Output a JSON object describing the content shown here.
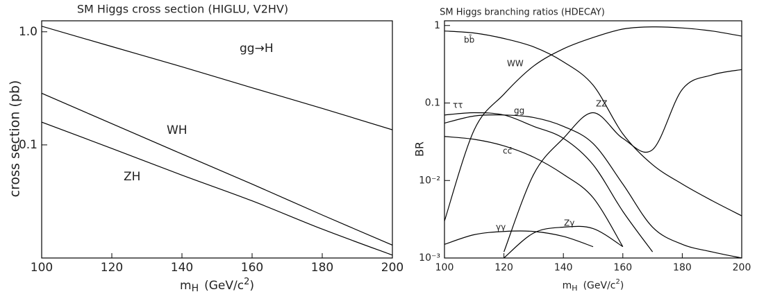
{
  "chart_data": [
    {
      "type": "line",
      "title": "SM Higgs cross section (HIGLU, V2HV)",
      "ylabel": "cross section  (pb)",
      "xlabel": [
        "m",
        "H",
        "(GeV/c",
        "2",
        ")"
      ],
      "x": [
        100,
        120,
        140,
        160,
        180,
        200
      ],
      "series": [
        {
          "name": "gg→H",
          "color": "#000000",
          "values": [
            1.12,
            0.74,
            0.49,
            0.32,
            0.21,
            0.136
          ]
        },
        {
          "name": "WH",
          "color": "#000000",
          "values": [
            0.286,
            0.154,
            0.083,
            0.045,
            0.024,
            0.013
          ]
        },
        {
          "name": "ZH",
          "color": "#000000",
          "values": [
            0.159,
            0.093,
            0.054,
            0.032,
            0.018,
            0.0106
          ]
        }
      ],
      "xlim": [
        100,
        200
      ],
      "xticks": [
        100,
        120,
        140,
        160,
        180,
        200
      ],
      "ylim": [
        0.01,
        1.25
      ],
      "yticks": [
        {
          "value": 1,
          "label": "1.0"
        },
        0.1
      ],
      "log_y": true
    },
    {
      "type": "line",
      "title": "SM Higgs branching ratios (HDECAY)",
      "ylabel": "BR",
      "xlabel": [
        "m",
        "H",
        "(GeV/c",
        "2",
        ")"
      ],
      "x": [
        100,
        110,
        120,
        130,
        140,
        150,
        160,
        170,
        180,
        190,
        200
      ],
      "series": [
        {
          "name": "bb̄",
          "color": "#000000",
          "values": [
            0.85,
            0.8,
            0.68,
            0.53,
            0.34,
            0.17,
            0.04,
            0.016,
            0.009,
            0.0055,
            0.0035
          ]
        },
        {
          "name": "WW",
          "color": "#000000",
          "values": [
            0.003,
            0.045,
            0.13,
            0.3,
            0.5,
            0.7,
            0.9,
            0.96,
            0.93,
            0.85,
            0.73
          ]
        },
        {
          "name": "ττ",
          "color": "#000000",
          "values": [
            0.07,
            0.075,
            0.07,
            0.05,
            0.035,
            0.016,
            0.004,
            0.0012,
            null,
            null,
            null
          ]
        },
        {
          "name": "gg",
          "color": "#000000",
          "values": [
            0.055,
            0.068,
            0.07,
            0.065,
            0.05,
            0.03,
            0.009,
            0.0025,
            0.0015,
            0.0012,
            0.001
          ]
        },
        {
          "name": "ZZ",
          "color": "#000000",
          "values": [
            null,
            null,
            0.0012,
            0.012,
            0.035,
            0.075,
            0.035,
            0.025,
            0.15,
            0.23,
            0.27
          ]
        },
        {
          "name": "cc̄",
          "color": "#000000",
          "values": [
            0.037,
            0.034,
            0.028,
            0.02,
            0.012,
            0.006,
            0.0014,
            null,
            null,
            null,
            null
          ]
        },
        {
          "name": "γγ",
          "color": "#000000",
          "values": [
            0.0015,
            0.002,
            0.0022,
            0.0022,
            0.0019,
            0.0014,
            null,
            null,
            null,
            null,
            null
          ]
        },
        {
          "name": "Zγ",
          "color": "#000000",
          "values": [
            null,
            null,
            0.001,
            0.0021,
            0.0025,
            0.0024,
            0.0014,
            null,
            null,
            null,
            null
          ]
        }
      ],
      "xlim": [
        100,
        200
      ],
      "xticks": [
        100,
        120,
        140,
        160,
        180,
        200
      ],
      "ylim": [
        0.001,
        1.15
      ],
      "yticks": [
        1,
        0.1,
        {
          "value": 0.01,
          "label": "10⁻²"
        },
        {
          "value": 0.001,
          "label": "10⁻³"
        }
      ],
      "log_y": true
    }
  ]
}
